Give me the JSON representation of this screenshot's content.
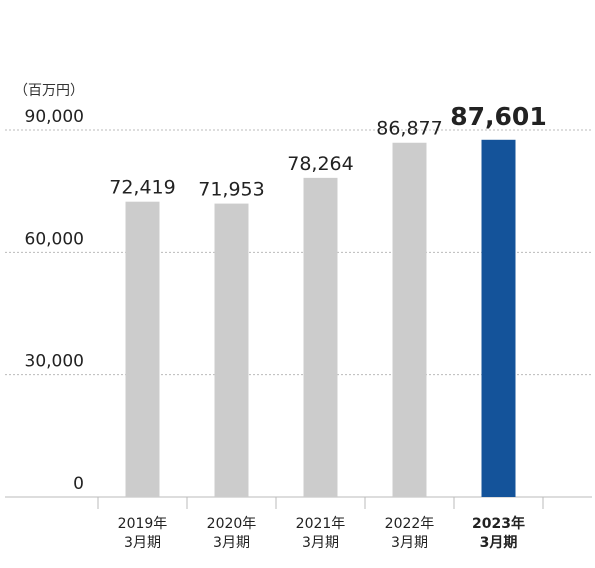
{
  "chart_data": {
    "type": "bar",
    "unit": "（百万円）",
    "categories": [
      "2019年\n3月期",
      "2020年\n3月期",
      "2021年\n3月期",
      "2022年\n3月期",
      "2023年\n3月期"
    ],
    "values": [
      72419,
      71953,
      78264,
      86877,
      87601
    ],
    "value_labels": [
      "72,419",
      "71,953",
      "78,264",
      "86,877",
      "87,601"
    ],
    "ylim": [
      0,
      90000
    ],
    "yticks": [
      0,
      30000,
      60000,
      90000
    ],
    "ytick_labels": [
      "0",
      "30,000",
      "60,000",
      "90,000"
    ],
    "highlight_index": 4,
    "grid": true,
    "colors": {
      "bar": "#cccccc",
      "highlight": "#14539a",
      "grid": "#bbbbbb",
      "axis": "#bbbbbb"
    }
  }
}
